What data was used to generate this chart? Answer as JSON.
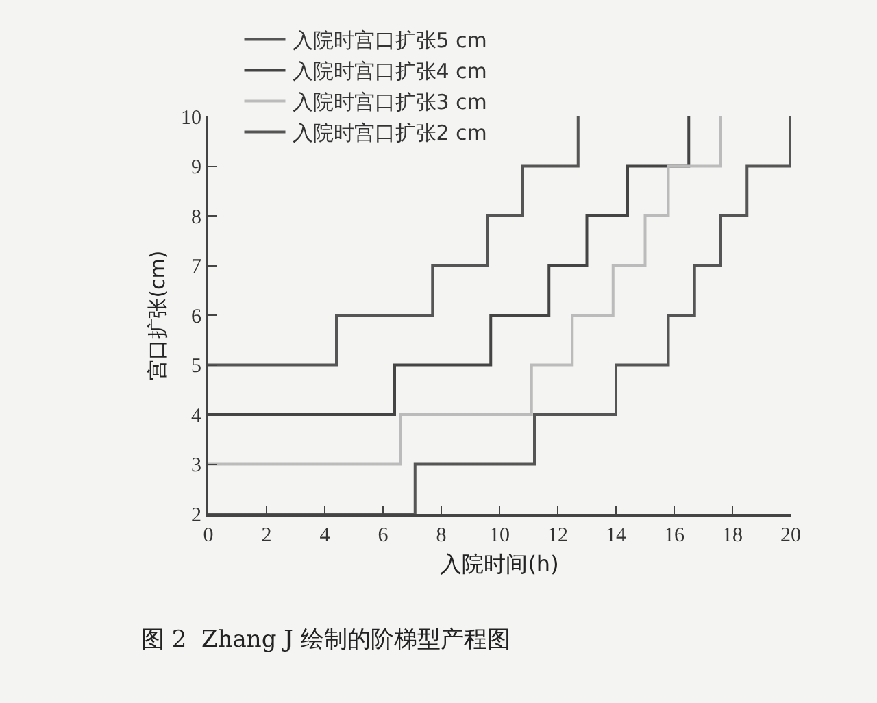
{
  "chart_data": {
    "type": "step",
    "xlabel": "入院时间(h)",
    "ylabel": "宫口扩张(cm)",
    "xlim": [
      0,
      20
    ],
    "xticks": [
      0,
      2,
      4,
      6,
      8,
      10,
      12,
      14,
      16,
      18,
      20
    ],
    "ylim": [
      2,
      10
    ],
    "yticks": [
      2,
      3,
      4,
      5,
      6,
      7,
      8,
      9,
      10
    ],
    "grid": false,
    "legend": "top",
    "line_style": "solid",
    "marker": "none",
    "series": [
      {
        "name": "入院时宫口扩张5 cm",
        "color": "#555555",
        "x": [
          0,
          4.4,
          7.7,
          9.6,
          10.8,
          12.7
        ],
        "values": [
          5,
          6,
          7,
          8,
          9,
          10
        ]
      },
      {
        "name": "入院时宫口扩张4 cm",
        "color": "#444444",
        "x": [
          0,
          6.4,
          9.7,
          11.7,
          13,
          14.4,
          16.5
        ],
        "values": [
          4,
          5,
          6,
          7,
          8,
          9,
          10
        ]
      },
      {
        "name": "入院时宫口扩张3 cm",
        "color": "#bbbbbb",
        "x": [
          0,
          6.6,
          11.1,
          12.5,
          13.9,
          15,
          15.8,
          17.6
        ],
        "values": [
          3,
          4,
          5,
          6,
          7,
          8,
          9,
          10
        ]
      },
      {
        "name": "入院时宫口扩张2 cm",
        "color": "#555555",
        "x": [
          0,
          7.1,
          11.2,
          14,
          15.8,
          16.7,
          17.6,
          18.5,
          20
        ],
        "values": [
          2,
          3,
          4,
          5,
          6,
          7,
          8,
          9,
          10
        ]
      }
    ],
    "annotations": [
      "图 2  Zhang J 绘制的阶梯型产程图"
    ]
  }
}
